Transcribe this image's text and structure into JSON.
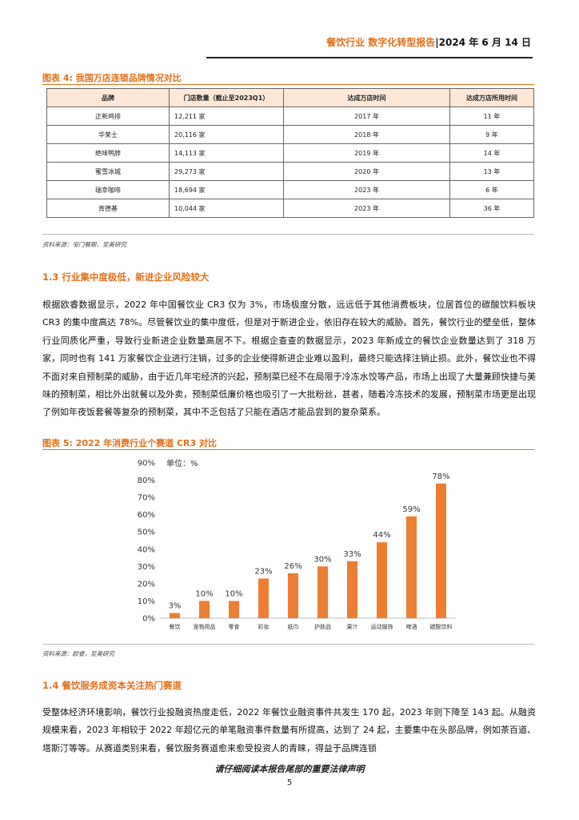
{
  "header": {
    "title": "餐饮行业 数字化转型报告",
    "separator": "|",
    "date": "2024 年 6 月 14 日"
  },
  "figure4": {
    "caption": "图表 4: 我国万店连锁品牌情况对比",
    "columns": [
      "品牌",
      "门店数量（截止至2023Q1）",
      "达成万店时间",
      "达成万店所用时间"
    ],
    "rows": [
      [
        "正新鸡排",
        "12,211 家",
        "2017 年",
        "11 年"
      ],
      [
        "华莱士",
        "20,116 家",
        "2018 年",
        "9 年"
      ],
      [
        "绝味鸭脖",
        "14,113 家",
        "2019 年",
        "14 年"
      ],
      [
        "蜜雪冰城",
        "29,273 家",
        "2020 年",
        "13 年"
      ],
      [
        "瑞幸咖啡",
        "18,694 家",
        "2023 年",
        "6 年"
      ],
      [
        "肯德基",
        "10,044 家",
        "2023 年",
        "36 年"
      ]
    ],
    "source": "资料来源：窄门餐眼，至美研究"
  },
  "section13": {
    "title": "1.3 行业集中度极低，新进企业风险较大",
    "paragraph": "根据欧睿数据显示，2022 年中国餐饮业 CR3 仅为 3%，市场极度分散，远远低于其他消费板块，位居首位的碳酸饮料板块 CR3 的集中度高达 78%。尽管餐饮业的集中度低，但是对于新进企业，依旧存在较大的威胁。首先，餐饮行业的壁垒低，整体行业同质化严重，导致行业新进企业数量高居不下。根据企查查的数据显示，2023 年新成立的餐饮企业数量达到了 318 万家，同时也有 141 万家餐饮企业进行注销，过多的企业使得新进企业难以盈利，最终只能选择注销止损。此外，餐饮业也不得不面对来自预制菜的威胁，由于近几年宅经济的兴起，预制菜已经不在局限于冷冻水饺等产品，市场上出现了大量兼顾快捷与美味的预制菜，相比外出就餐以及外卖，预制菜低廉价格也吸引了一大批粉丝，甚者，随着冷冻技术的发展，预制菜市场更是出现了例如年夜饭套餐等复杂的预制菜，其中不乏包括了只能在酒店才能品尝到的复杂菜系。"
  },
  "figure5": {
    "caption": "图表 5: 2022 年消费行业个赛道 CR3 对比",
    "source": "资料来源：欧睿，至美研究"
  },
  "chart_data": {
    "type": "bar",
    "title": "",
    "unit_label": "单位：%",
    "categories": [
      "餐饮",
      "宠物用品",
      "零食",
      "彩妆",
      "纸巾",
      "护肤品",
      "果汁",
      "运动服饰",
      "啤酒",
      "碳酸饮料"
    ],
    "values": [
      3,
      10,
      10,
      23,
      26,
      30,
      33,
      44,
      59,
      78
    ],
    "data_labels": [
      "3%",
      "10%",
      "10%",
      "23%",
      "26%",
      "30%",
      "33%",
      "44%",
      "59%",
      "78%"
    ],
    "ylim": [
      0,
      90
    ],
    "yticks": [
      "0%",
      "10%",
      "20%",
      "30%",
      "40%",
      "50%",
      "60%",
      "70%",
      "80%",
      "90%"
    ],
    "bar_color": "#ed7d31",
    "grid": false,
    "legend": "none"
  },
  "section14": {
    "title": "1.4 餐饮服务成资本关注热门赛道",
    "paragraph": "受整体经济环境影响，餐饮行业投融资热度走低，2022 年餐饮业融资事件共发生 170 起，2023 年则下降至 143 起。从融资规模来看，2023 年相较于 2022 年超亿元的单笔融资事件数量有所提高，达到了 24 起，主要集中在头部品牌，例如茶百道、塔斯汀等等。从赛道类别来看，餐饮服务赛道愈来愈受投资人的青睐，得益于品牌连锁"
  },
  "footer": {
    "disclaimer": "请仔细阅读本报告尾部的重要法律声明",
    "page": "5"
  },
  "colors": {
    "accent": "#e3701a",
    "table_header_bg": "#fde8d7"
  }
}
